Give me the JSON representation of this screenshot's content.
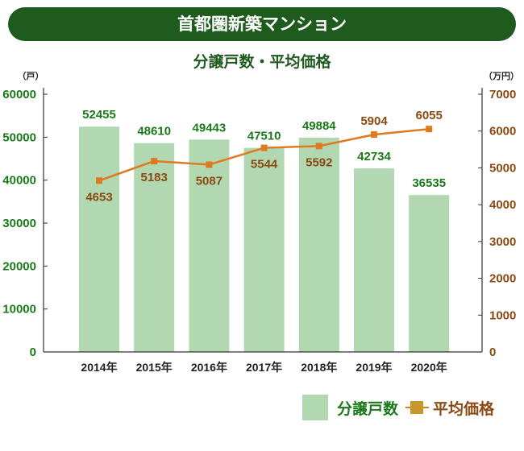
{
  "chart_data": {
    "type": "bar+line",
    "title": "首都圏新築マンション",
    "subtitle": "分譲戸数・平均価格",
    "categories": [
      "2014年",
      "2015年",
      "2016年",
      "2017年",
      "2018年",
      "2019年",
      "2020年"
    ],
    "series": [
      {
        "name": "分譲戸数",
        "type": "bar",
        "axis": "left",
        "color": "#b1d8b1",
        "values": [
          52455,
          48610,
          49443,
          47510,
          49884,
          42734,
          36535
        ]
      },
      {
        "name": "平均価格",
        "type": "line",
        "axis": "right",
        "color": "#e07a20",
        "values": [
          4653,
          5183,
          5087,
          5544,
          5592,
          5904,
          6055
        ]
      }
    ],
    "left_axis": {
      "unit": "（戸）",
      "ylim": [
        0,
        60000
      ],
      "ticks": [
        0,
        10000,
        20000,
        30000,
        40000,
        50000,
        60000
      ],
      "color": "#1a7a1a"
    },
    "right_axis": {
      "unit": "（万円）",
      "ylim": [
        0,
        7000
      ],
      "ticks": [
        0,
        1000,
        2000,
        3000,
        4000,
        5000,
        6000,
        7000
      ],
      "color": "#8a4a12"
    },
    "legend": {
      "position": "bottom-right",
      "bar_label": "分譲戸数",
      "line_label": "平均価格",
      "line_marker_color": "#c8962a"
    },
    "grid": false
  }
}
